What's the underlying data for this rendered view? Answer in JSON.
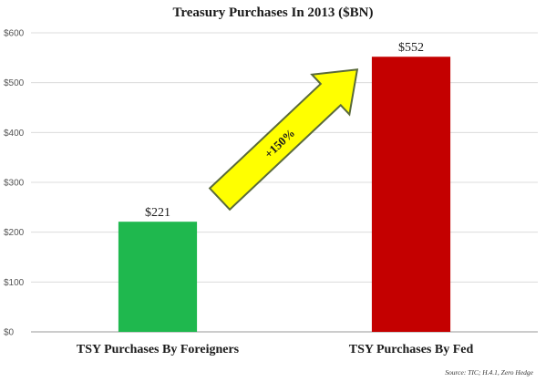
{
  "chart_data": {
    "type": "bar",
    "title": "Treasury Purchases In 2013 ($BN)",
    "categories": [
      "TSY Purchases By Foreigners",
      "TSY Purchases By Fed"
    ],
    "values": [
      221,
      552
    ],
    "value_labels": [
      "$221",
      "$552"
    ],
    "bar_colors": [
      "#1fb84e",
      "#c40000"
    ],
    "ylim": [
      0,
      600
    ],
    "yticks": [
      "$0",
      "$100",
      "$200",
      "$300",
      "$400",
      "$500",
      "$600"
    ],
    "grid": true,
    "annotation": {
      "text": "+150%",
      "fill": "#ffff00",
      "stroke": "#5a6a3a"
    },
    "source": "Source: TIC; H.4.1, Zero Hedge"
  }
}
